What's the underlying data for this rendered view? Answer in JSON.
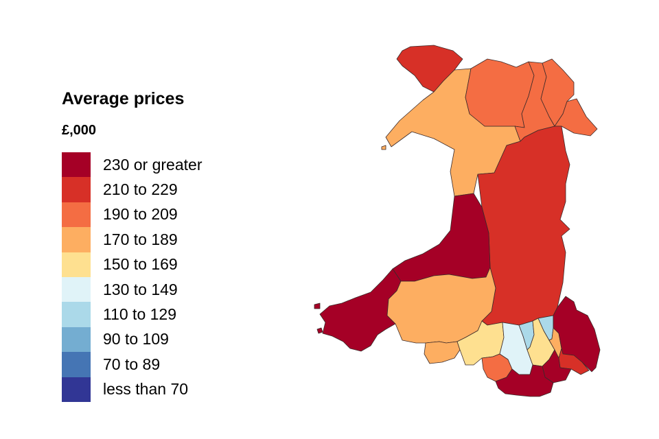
{
  "legend": {
    "title": "Average prices",
    "subtitle": "£,000",
    "items": [
      {
        "label": "230 or greater",
        "color": "#a50026"
      },
      {
        "label": "210 to 229",
        "color": "#d73027"
      },
      {
        "label": "190 to 209",
        "color": "#f46d43"
      },
      {
        "label": "170 to 189",
        "color": "#fdae61"
      },
      {
        "label": "150 to 169",
        "color": "#fee090"
      },
      {
        "label": "130 to 149",
        "color": "#e0f3f8"
      },
      {
        "label": "110 to 129",
        "color": "#abd9e9"
      },
      {
        "label": "90 to 109",
        "color": "#74add1"
      },
      {
        "label": "70 to 89",
        "color": "#4575b4"
      },
      {
        "label": "less than 70",
        "color": "#313695"
      }
    ]
  },
  "map": {
    "regions": [
      {
        "id": "anglesey",
        "band": "210 to 229"
      },
      {
        "id": "gwynedd",
        "band": "170 to 189"
      },
      {
        "id": "conwy",
        "band": "190 to 209"
      },
      {
        "id": "denbighshire",
        "band": "190 to 209"
      },
      {
        "id": "flintshire",
        "band": "190 to 209"
      },
      {
        "id": "wrexham",
        "band": "190 to 209"
      },
      {
        "id": "powys",
        "band": "210 to 229"
      },
      {
        "id": "ceredigion",
        "band": "230 or greater"
      },
      {
        "id": "pembrokeshire",
        "band": "230 or greater"
      },
      {
        "id": "carmarthenshire",
        "band": "170 to 189"
      },
      {
        "id": "swansea",
        "band": "170 to 189"
      },
      {
        "id": "neath-port-talbot",
        "band": "150 to 169"
      },
      {
        "id": "bridgend",
        "band": "190 to 209"
      },
      {
        "id": "rhondda-cynon-taf",
        "band": "130 to 149"
      },
      {
        "id": "merthyr-tydfil",
        "band": "110 to 129"
      },
      {
        "id": "caerphilly",
        "band": "150 to 169"
      },
      {
        "id": "blaenau-gwent",
        "band": "110 to 129"
      },
      {
        "id": "torfaen",
        "band": "170 to 189"
      },
      {
        "id": "monmouthshire",
        "band": "230 or greater"
      },
      {
        "id": "newport",
        "band": "210 to 229"
      },
      {
        "id": "cardiff",
        "band": "230 or greater"
      },
      {
        "id": "vale-of-glamorgan",
        "band": "230 or greater"
      }
    ]
  }
}
